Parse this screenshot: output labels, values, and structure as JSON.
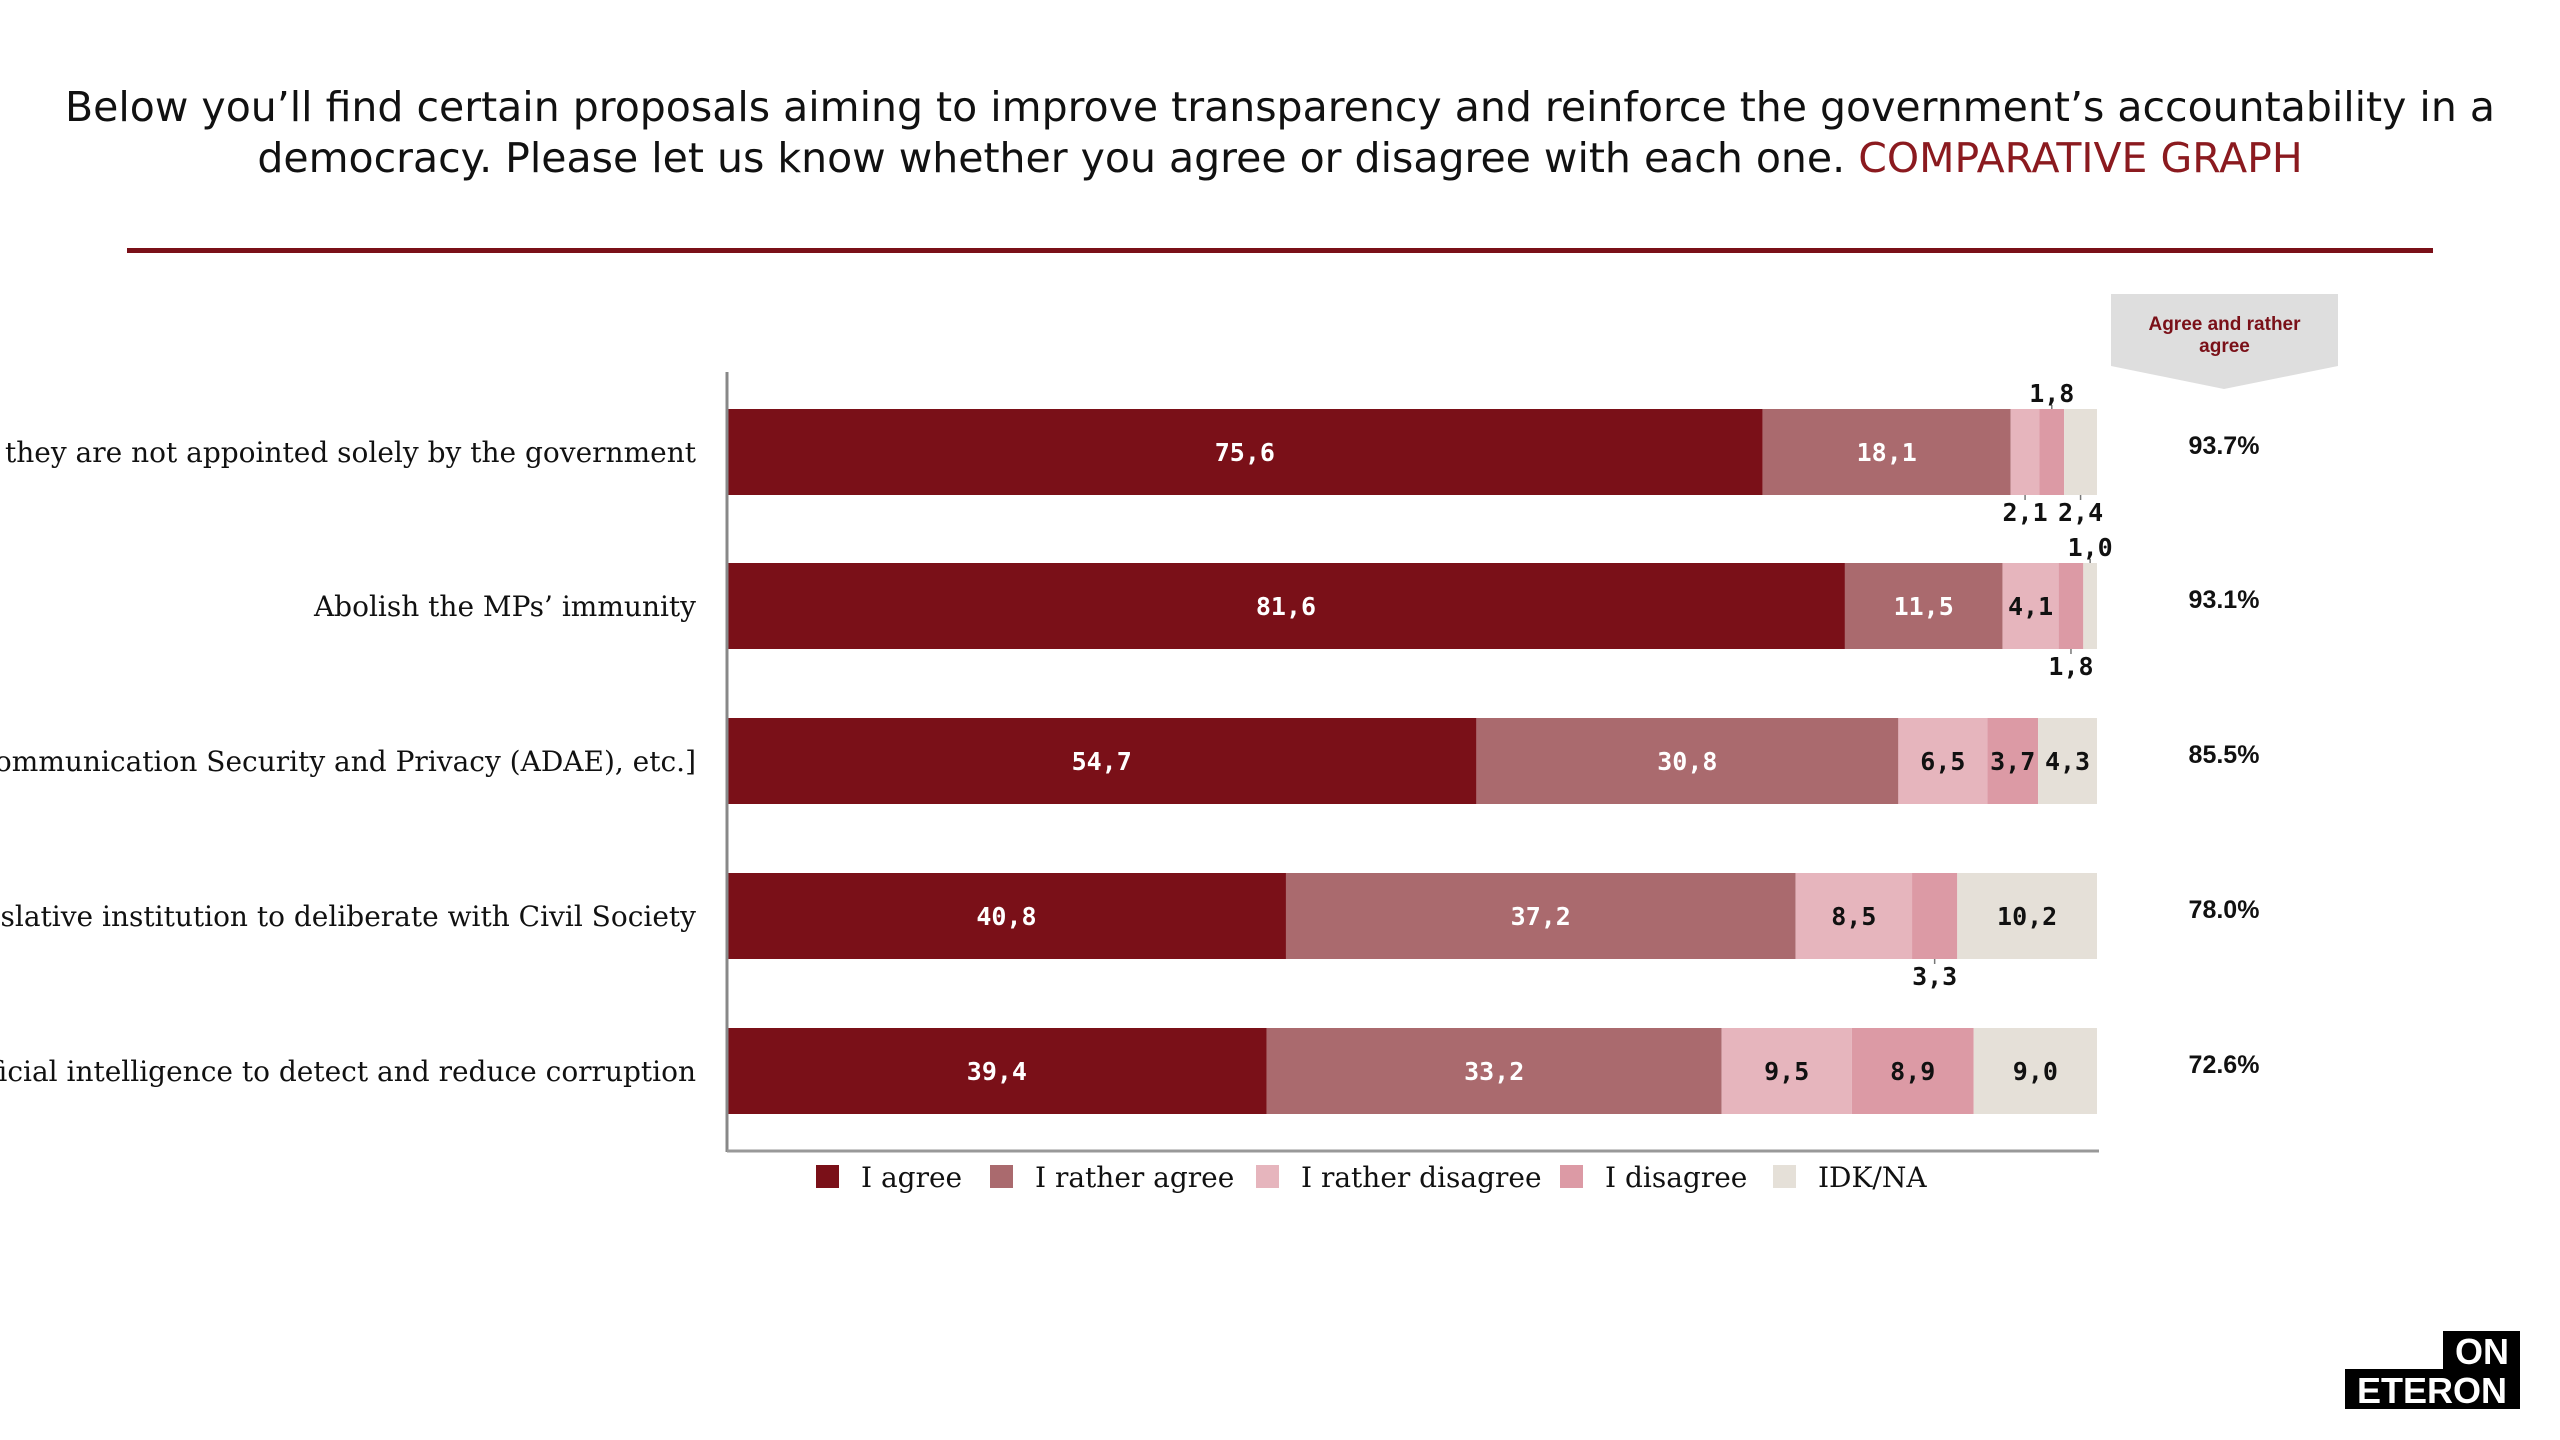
{
  "title": {
    "text": "Below you’ll find certain proposals aiming to improve transparency and reinforce the government’s accountability in a democracy. Please let us know whether you agree or disagree with each one.",
    "accent": "COMPARATIVE GRAPH"
  },
  "logo_text": [
    "ON",
    "ETERON"
  ],
  "colors": {
    "I agree": "#7a1018",
    "I rather agree": "#aa6a6e",
    "I rather disagree": "#e6b5bd",
    "I disagree": "#dc9aa5",
    "IDK/NA": "#e5e0d8",
    "accent": "#8b1a1f"
  },
  "chart_data": {
    "type": "bar",
    "orientation": "horizontal",
    "stacked": true,
    "xlim": [
      0,
      100
    ],
    "grid": false,
    "legend_position": "bottom",
    "categories": [
      "so they are not appointed solely by the government",
      "Abolish the MPs’ immunity",
      "r Communication Security and Privacy (ADAE), etc.]",
      "egislative institution to deliberate with Civil Society",
      "rtificial intelligence to detect and reduce corruption"
    ],
    "series": [
      {
        "name": "I agree",
        "values": [
          75.6,
          81.6,
          54.7,
          40.8,
          39.4
        ]
      },
      {
        "name": "I rather agree",
        "values": [
          18.1,
          11.5,
          30.8,
          37.2,
          33.2
        ]
      },
      {
        "name": "I rather disagree",
        "values": [
          2.1,
          4.1,
          6.5,
          8.5,
          9.5
        ]
      },
      {
        "name": "I disagree",
        "values": [
          1.8,
          1.8,
          3.7,
          3.3,
          8.9
        ]
      },
      {
        "name": "IDK/NA",
        "values": [
          2.4,
          1.0,
          4.3,
          10.2,
          9.0
        ]
      }
    ],
    "summary_column": {
      "header": "Agree and rather agree",
      "values": [
        "93.7%",
        "93.1%",
        "85.5%",
        "78.0%",
        "72.6%"
      ]
    }
  }
}
